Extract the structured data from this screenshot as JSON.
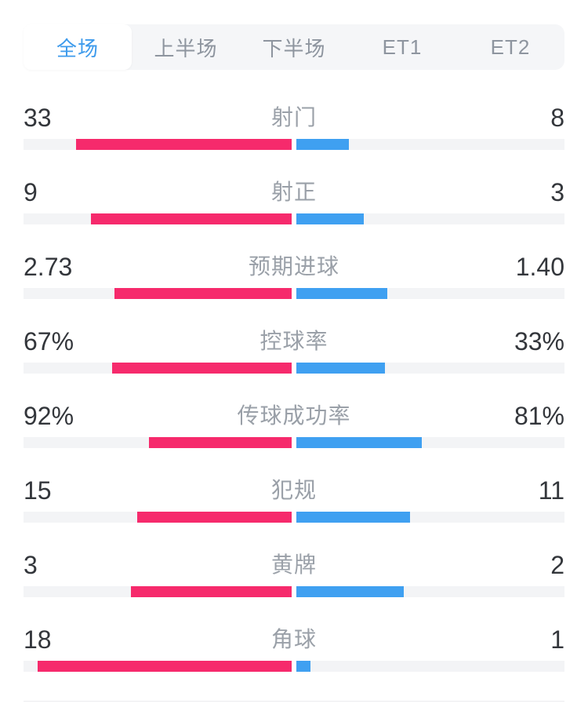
{
  "tabs": {
    "items": [
      {
        "label": "全场",
        "active": true
      },
      {
        "label": "上半场",
        "active": false
      },
      {
        "label": "下半场",
        "active": false
      },
      {
        "label": "ET1",
        "active": false
      },
      {
        "label": "ET2",
        "active": false
      }
    ]
  },
  "chart_data": {
    "type": "bar",
    "orientation": "horizontal-split",
    "rows": [
      {
        "label": "射门",
        "home": "33",
        "away": "8"
      },
      {
        "label": "射正",
        "home": "9",
        "away": "3"
      },
      {
        "label": "预期进球",
        "home": "2.73",
        "away": "1.40"
      },
      {
        "label": "控球率",
        "home": "67%",
        "away": "33%"
      },
      {
        "label": "传球成功率",
        "home": "92%",
        "away": "81%"
      },
      {
        "label": "犯规",
        "home": "15",
        "away": "11"
      },
      {
        "label": "黄牌",
        "home": "3",
        "away": "2"
      },
      {
        "label": "角球",
        "home": "18",
        "away": "1"
      }
    ]
  },
  "colors": {
    "home": "#F62A6C",
    "away": "#3FA0F1",
    "track": "#F3F4F6",
    "tabbar_bg": "#F5F6F8",
    "tab_active_text": "#3E9BEC",
    "tab_inactive_text": "#8E959F",
    "number_text": "#33363B",
    "label_text": "#9AA0A8",
    "divider": "#ECECEF"
  }
}
